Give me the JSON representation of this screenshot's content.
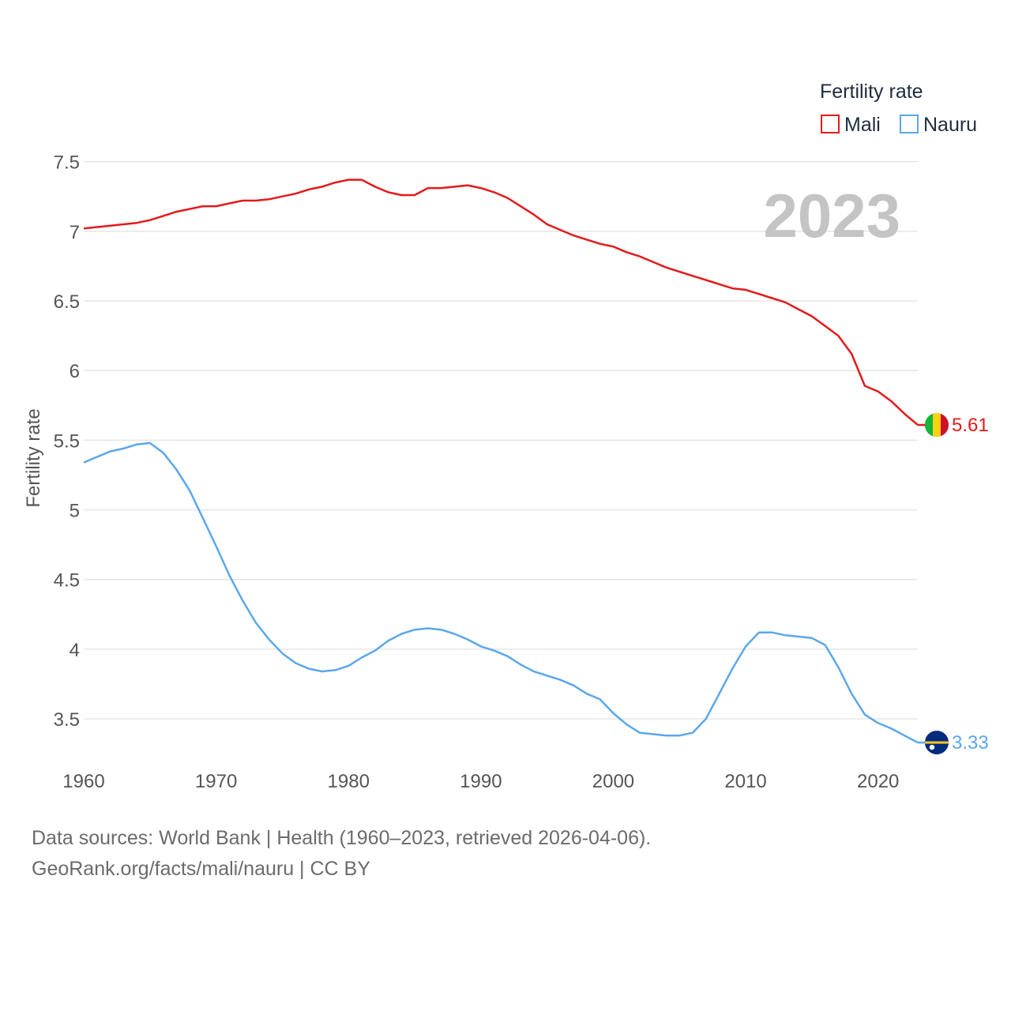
{
  "chart_data": {
    "type": "line",
    "ylabel": "Fertility rate",
    "xlabel": "",
    "xlim": [
      1960,
      2023
    ],
    "ylim": [
      3.2,
      7.6
    ],
    "y_ticks": [
      3.5,
      4,
      4.5,
      5,
      5.5,
      6,
      6.5,
      7,
      7.5
    ],
    "y_tick_labels": [
      "3.5",
      "4",
      "4.5",
      "5",
      "5.5",
      "6",
      "6.5",
      "7",
      "7.5"
    ],
    "x_ticks": [
      1960,
      1970,
      1980,
      1990,
      2000,
      2010,
      2020
    ],
    "x_tick_labels": [
      "1960",
      "1970",
      "1980",
      "1990",
      "2000",
      "2010",
      "2020"
    ],
    "grid": true,
    "year_stamp": "2023",
    "legend": {
      "title": "Fertility rate",
      "placement": "top-right",
      "entries": [
        "Mali",
        "Nauru"
      ]
    },
    "x": [
      1960,
      1961,
      1962,
      1963,
      1964,
      1965,
      1966,
      1967,
      1968,
      1969,
      1970,
      1971,
      1972,
      1973,
      1974,
      1975,
      1976,
      1977,
      1978,
      1979,
      1980,
      1981,
      1982,
      1983,
      1984,
      1985,
      1986,
      1987,
      1988,
      1989,
      1990,
      1991,
      1992,
      1993,
      1994,
      1995,
      1996,
      1997,
      1998,
      1999,
      2000,
      2001,
      2002,
      2003,
      2004,
      2005,
      2006,
      2007,
      2008,
      2009,
      2010,
      2011,
      2012,
      2013,
      2014,
      2015,
      2016,
      2017,
      2018,
      2019,
      2020,
      2021,
      2022,
      2023
    ],
    "series": [
      {
        "name": "Mali",
        "color": "#e31a1c",
        "end_label": "5.61",
        "flag": "mali-flag",
        "values": [
          7.02,
          7.03,
          7.04,
          7.05,
          7.06,
          7.08,
          7.11,
          7.14,
          7.16,
          7.18,
          7.18,
          7.2,
          7.22,
          7.22,
          7.23,
          7.25,
          7.27,
          7.3,
          7.32,
          7.35,
          7.37,
          7.37,
          7.32,
          7.28,
          7.26,
          7.26,
          7.31,
          7.31,
          7.32,
          7.33,
          7.31,
          7.28,
          7.24,
          7.18,
          7.12,
          7.05,
          7.01,
          6.97,
          6.94,
          6.91,
          6.89,
          6.85,
          6.82,
          6.78,
          6.74,
          6.71,
          6.68,
          6.65,
          6.62,
          6.59,
          6.58,
          6.55,
          6.52,
          6.49,
          6.44,
          6.39,
          6.32,
          6.25,
          6.12,
          5.89,
          5.85,
          5.78,
          5.69,
          5.61
        ]
      },
      {
        "name": "Nauru",
        "color": "#5ba7eb",
        "end_label": "3.33",
        "flag": "nauru-flag",
        "values": [
          5.34,
          5.38,
          5.42,
          5.44,
          5.47,
          5.48,
          5.41,
          5.29,
          5.14,
          4.94,
          4.74,
          4.53,
          4.35,
          4.19,
          4.07,
          3.97,
          3.9,
          3.86,
          3.84,
          3.85,
          3.88,
          3.94,
          3.99,
          4.06,
          4.11,
          4.14,
          4.15,
          4.14,
          4.11,
          4.07,
          4.02,
          3.99,
          3.95,
          3.89,
          3.84,
          3.81,
          3.78,
          3.74,
          3.68,
          3.64,
          3.54,
          3.46,
          3.4,
          3.39,
          3.38,
          3.38,
          3.4,
          3.5,
          3.68,
          3.86,
          4.02,
          4.12,
          4.12,
          4.1,
          4.09,
          4.08,
          4.03,
          3.87,
          3.68,
          3.53,
          3.47,
          3.43,
          3.38,
          3.33
        ]
      }
    ],
    "source_line_1": "Data sources: World Bank | Health (1960–2023, retrieved 2026-04-06).",
    "source_line_2": "GeoRank.org/facts/mali/nauru | CC BY"
  }
}
